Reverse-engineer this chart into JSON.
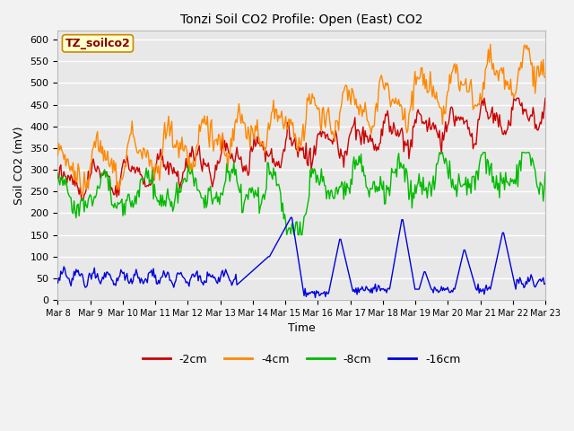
{
  "title": "Tonzi Soil CO2 Profile: Open (East) CO2",
  "ylabel": "Soil CO2 (mV)",
  "xlabel": "Time",
  "watermark": "TZ_soilco2",
  "ylim": [
    0,
    620
  ],
  "yticks": [
    0,
    50,
    100,
    150,
    200,
    250,
    300,
    350,
    400,
    450,
    500,
    550,
    600
  ],
  "xtick_labels": [
    "Mar 8",
    "Mar 9",
    "Mar 10",
    "Mar 11",
    "Mar 12",
    "Mar 13",
    "Mar 14",
    "Mar 15",
    "Mar 16",
    "Mar 17",
    "Mar 18",
    "Mar 19",
    "Mar 20",
    "Mar 21",
    "Mar 22",
    "Mar 23"
  ],
  "colors": {
    "-2cm": "#cc0000",
    "-4cm": "#ff8800",
    "-8cm": "#00bb00",
    "-16cm": "#0000dd"
  },
  "fig_bg": "#f2f2f2",
  "plot_bg": "#e8e8e8",
  "grid_color": "#ffffff",
  "n_points": 480
}
